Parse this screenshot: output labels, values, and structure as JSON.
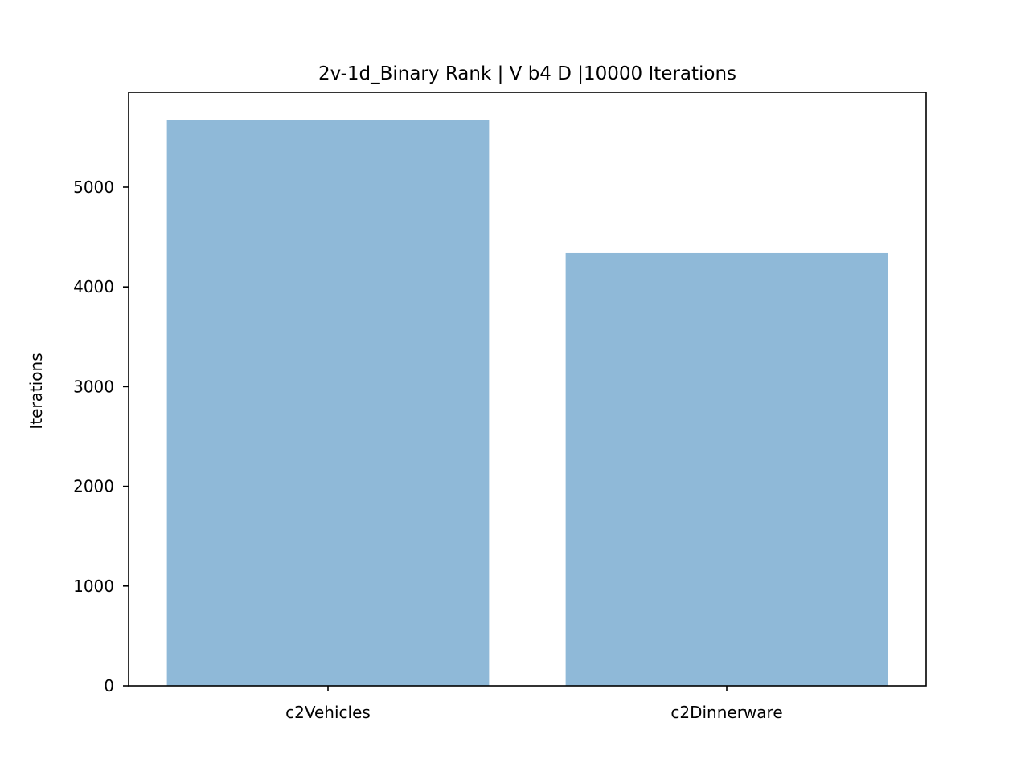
{
  "chart_data": {
    "type": "bar",
    "title": "2v-1d_Binary Rank | V b4 D |10000 Iterations",
    "xlabel": "",
    "ylabel": "Iterations",
    "categories": [
      "c2Vehicles",
      "c2Dinnerware"
    ],
    "values": [
      5670,
      4340
    ],
    "ylim": [
      0,
      5950
    ],
    "yticks": [
      0,
      1000,
      2000,
      3000,
      4000,
      5000
    ],
    "bar_color": "#8fb9d8",
    "grid": false,
    "legend": "none"
  }
}
